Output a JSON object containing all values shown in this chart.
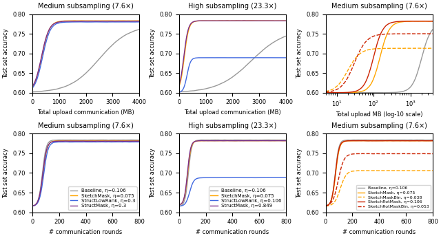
{
  "titles": [
    "Medium subsampling (7.6×)",
    "High subsampling (23.3×)",
    "Medium subsampling (7.6×)",
    "Medium subsampling (7.6×)",
    "High subsampling (23.3×)",
    "Medium subsampling (7.6×)"
  ],
  "ylim": [
    0.6,
    0.8
  ],
  "yticks": [
    0.6,
    0.65,
    0.7,
    0.75,
    0.8
  ],
  "ylabel": "Test set accuracy",
  "legend_bottom_left": [
    {
      "label": "Baseline, η=0.106",
      "color": "#999999",
      "ls": "-"
    },
    {
      "label": "SketchMask, η=0.075",
      "color": "#FFA500",
      "ls": "-"
    },
    {
      "label": "StructLowRank, η=0.3",
      "color": "#4169E1",
      "ls": "-"
    },
    {
      "label": "StructMask, η=0.3",
      "color": "#7B2D8B",
      "ls": "-"
    }
  ],
  "legend_bottom_mid": [
    {
      "label": "Baseline, η=0.106",
      "color": "#999999",
      "ls": "-"
    },
    {
      "label": "SketchMask, η=0.075",
      "color": "#FFA500",
      "ls": "-"
    },
    {
      "label": "StructLowRank, η=0.106",
      "color": "#4169E1",
      "ls": "-"
    },
    {
      "label": "StructMask, η=0.849",
      "color": "#7B2D8B",
      "ls": "-"
    }
  ],
  "legend_bottom_right": [
    {
      "label": "Baseline, η=0.106",
      "color": "#999999",
      "ls": "-"
    },
    {
      "label": "SketchMask, η=0.075",
      "color": "#FFA500",
      "ls": "-"
    },
    {
      "label": "SketchMaskBin, η=0.038",
      "color": "#FFA500",
      "ls": "--"
    },
    {
      "label": "SketchRotMask, η=0.106",
      "color": "#CC2200",
      "ls": "-"
    },
    {
      "label": "SketchRotMaskBin, η=0.053",
      "color": "#CC2200",
      "ls": "--"
    }
  ]
}
